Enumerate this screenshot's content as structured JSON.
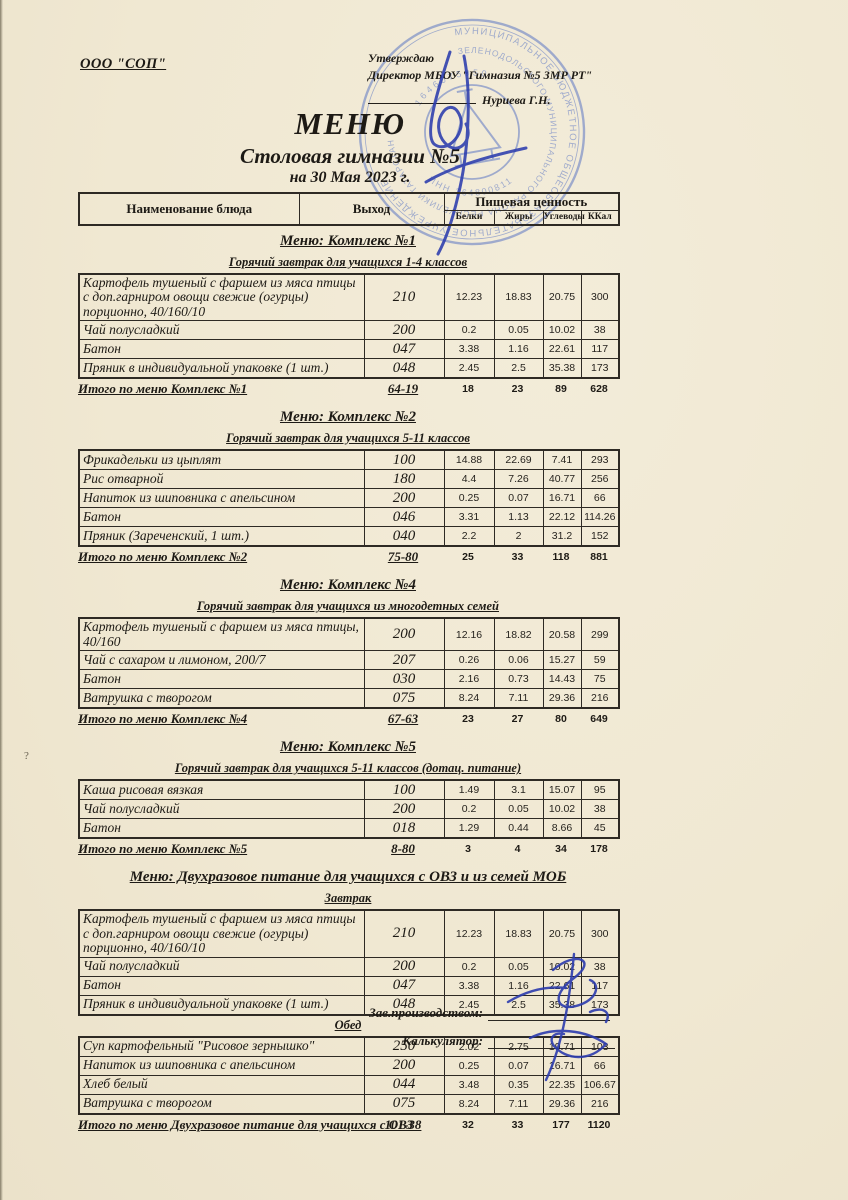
{
  "document": {
    "org": "ООО \"СОП\"",
    "approval": {
      "approve": "Утверждаю",
      "position": "Директор МБОУ \"Гимназия №5 ЗМР РТ\"",
      "name": "Нуриева Г.Н."
    },
    "title": "МЕНЮ",
    "subtitle": "Столовая гимназии №5",
    "date": "на 30 Мая 2023 г."
  },
  "columns": {
    "dish": "Наименование блюда",
    "out": "Выход",
    "nutrition": "Пищевая ценность",
    "sub": [
      "Белки",
      "Жиры",
      "Углеводы",
      "ККал"
    ]
  },
  "sections": [
    {
      "title": "Меню: Комплекс №1",
      "groups": [
        {
          "subtitle": "Горячий завтрак для учащихся 1-4 классов",
          "rows": [
            [
              "Картофель тушеный с фаршем из мяса птицы с доп.гарниром овощи свежие (огурцы) порционно, 40/160/10",
              "210",
              "12.23",
              "18.83",
              "20.75",
              "300"
            ],
            [
              "Чай полусладкий",
              "200",
              "0.2",
              "0.05",
              "10.02",
              "38"
            ],
            [
              "Батон",
              "047",
              "3.38",
              "1.16",
              "22.61",
              "117"
            ],
            [
              "Пряник в индивидуальной упаковке (1 шт.)",
              "048",
              "2.45",
              "2.5",
              "35.38",
              "173"
            ]
          ]
        }
      ],
      "total": [
        "Итого по меню Комплекс №1",
        "64-19",
        "18",
        "23",
        "89",
        "628"
      ]
    },
    {
      "title": "Меню: Комплекс №2",
      "groups": [
        {
          "subtitle": "Горячий завтрак для учащихся 5-11 классов",
          "rows": [
            [
              "Фрикадельки из цыплят",
              "100",
              "14.88",
              "22.69",
              "7.41",
              "293"
            ],
            [
              "Рис отварной",
              "180",
              "4.4",
              "7.26",
              "40.77",
              "256"
            ],
            [
              "Напиток из шиповника с апельсином",
              "200",
              "0.25",
              "0.07",
              "16.71",
              "66"
            ],
            [
              "Батон",
              "046",
              "3.31",
              "1.13",
              "22.12",
              "114.26"
            ],
            [
              "Пряник (Зареченский, 1 шт.)",
              "040",
              "2.2",
              "2",
              "31.2",
              "152"
            ]
          ]
        }
      ],
      "total": [
        "Итого по меню Комплекс №2",
        "75-80",
        "25",
        "33",
        "118",
        "881"
      ]
    },
    {
      "title": "Меню: Комплекс №4",
      "groups": [
        {
          "subtitle": "Горячий завтрак для учащихся из многодетных семей",
          "rows": [
            [
              "Картофель тушеный с фаршем из мяса птицы, 40/160",
              "200",
              "12.16",
              "18.82",
              "20.58",
              "299"
            ],
            [
              "Чай с сахаром и лимоном, 200/7",
              "207",
              "0.26",
              "0.06",
              "15.27",
              "59"
            ],
            [
              "Батон",
              "030",
              "2.16",
              "0.73",
              "14.43",
              "75"
            ],
            [
              "Ватрушка с творогом",
              "075",
              "8.24",
              "7.11",
              "29.36",
              "216"
            ]
          ]
        }
      ],
      "total": [
        "Итого по меню Комплекс №4",
        "67-63",
        "23",
        "27",
        "80",
        "649"
      ]
    },
    {
      "title": "Меню: Комплекс №5",
      "groups": [
        {
          "subtitle": "Горячий завтрак для учащихся 5-11 классов (дотац. питание)",
          "rows": [
            [
              "Каша рисовая вязкая",
              "100",
              "1.49",
              "3.1",
              "15.07",
              "95"
            ],
            [
              "Чай полусладкий",
              "200",
              "0.2",
              "0.05",
              "10.02",
              "38"
            ],
            [
              "Батон",
              "018",
              "1.29",
              "0.44",
              "8.66",
              "45"
            ]
          ]
        }
      ],
      "total": [
        "Итого по меню Комплекс №5",
        "8-80",
        "3",
        "4",
        "34",
        "178"
      ]
    },
    {
      "title": "Меню: Двухразовое питание для учащихся с ОВЗ и из семей МОБ",
      "groups": [
        {
          "subtitle": "Завтрак",
          "rows": [
            [
              "Картофель тушеный с фаршем из мяса птицы с доп.гарниром овощи свежие (огурцы) порционно, 40/160/10",
              "210",
              "12.23",
              "18.83",
              "20.75",
              "300"
            ],
            [
              "Чай полусладкий",
              "200",
              "0.2",
              "0.05",
              "10.02",
              "38"
            ],
            [
              "Батон",
              "047",
              "3.38",
              "1.16",
              "22.61",
              "117"
            ],
            [
              "Пряник в индивидуальной упаковке (1 шт.)",
              "048",
              "2.45",
              "2.5",
              "35.38",
              "173"
            ]
          ]
        },
        {
          "subtitle": "Обед",
          "rows": [
            [
              "Суп картофельный \"Рисовое зернышко\"",
              "250",
              "2.02",
              "2.75",
              "19.71",
              "103"
            ],
            [
              "Напиток из шиповника с апельсином",
              "200",
              "0.25",
              "0.07",
              "16.71",
              "66"
            ],
            [
              "Хлеб белый",
              "044",
              "3.48",
              "0.35",
              "22.35",
              "106.67"
            ],
            [
              "Ватрушка с творогом",
              "075",
              "8.24",
              "7.11",
              "29.36",
              "216"
            ]
          ]
        }
      ],
      "total": [
        "Итого по меню Двухразовое питание для учащихся с ОВЗ",
        "101-38",
        "32",
        "33",
        "177",
        "1120"
      ]
    }
  ],
  "footer": {
    "manager": "Зав.производством:",
    "calculator": "Калькулятор:"
  },
  "stamp": {
    "ring1": "МУНИЦИПАЛЬНОЕ БЮДЖЕТНОЕ ОБЩЕОБРАЗОВАТЕЛЬНОЕ УЧРЕЖДЕНИЕ",
    "ring2": "ЗЕЛЕНОДОЛЬСКОГО МУНИЦИПАЛЬНОГО РАЙОНА РЕСПУБЛИКИ ТАТАРСТАН",
    "ogrn": "1646075950",
    "inn": "ИНН 164800811"
  },
  "artifacts": {
    "mark": "?"
  },
  "colors": {
    "paper": "#f0e8d2",
    "ink": "#1d1a15",
    "stamp_blue": "#5470c2",
    "signature_blue": "#2c3cae"
  }
}
